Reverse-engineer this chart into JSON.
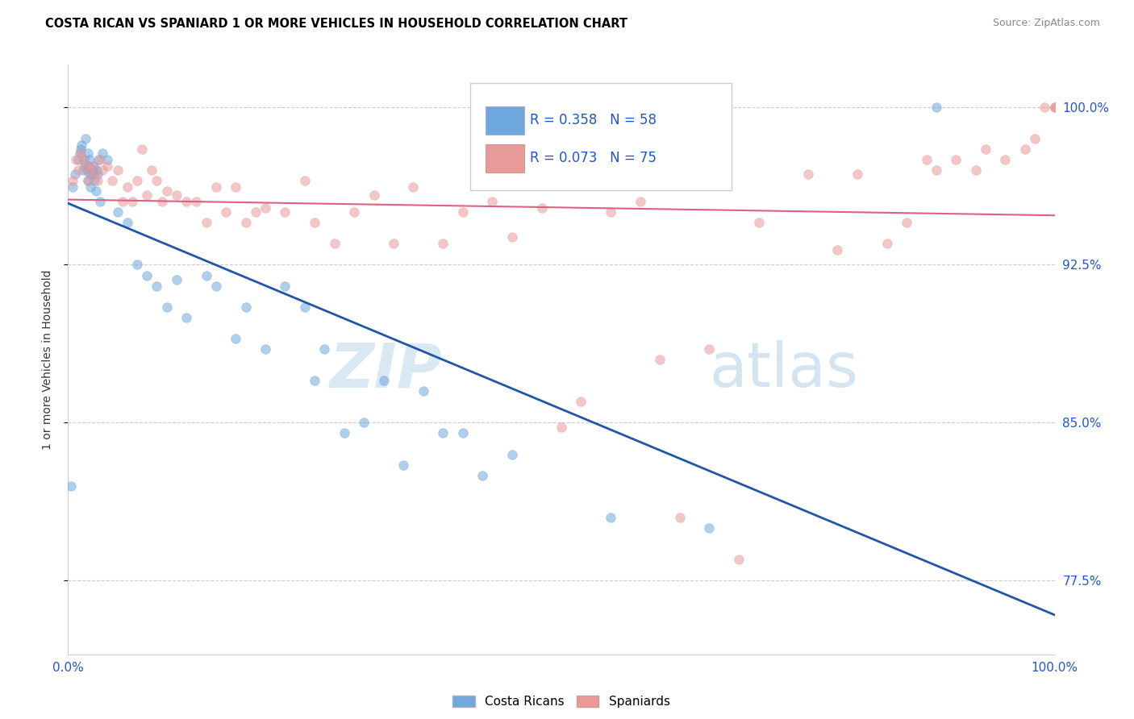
{
  "title": "COSTA RICAN VS SPANIARD 1 OR MORE VEHICLES IN HOUSEHOLD CORRELATION CHART",
  "source": "Source: ZipAtlas.com",
  "ylabel": "1 or more Vehicles in Household",
  "yticks": [
    77.5,
    85.0,
    92.5,
    100.0
  ],
  "ytick_labels": [
    "77.5%",
    "85.0%",
    "92.5%",
    "100.0%"
  ],
  "legend_blue_r": "R = 0.358",
  "legend_blue_n": "N = 58",
  "legend_pink_r": "R = 0.073",
  "legend_pink_n": "N = 75",
  "blue_color": "#6fa8dc",
  "pink_color": "#ea9999",
  "blue_line_color": "#2255aa",
  "pink_line_color": "#e06080",
  "xlim": [
    0,
    100
  ],
  "ylim": [
    74,
    102
  ],
  "blue_x": [
    0.3,
    0.5,
    0.7,
    1.0,
    1.2,
    1.3,
    1.4,
    1.5,
    1.6,
    1.7,
    1.8,
    1.9,
    2.0,
    2.0,
    2.1,
    2.2,
    2.2,
    2.3,
    2.4,
    2.5,
    2.6,
    2.7,
    2.8,
    2.9,
    3.0,
    3.1,
    3.2,
    3.5,
    4.0,
    5.0,
    6.0,
    7.0,
    8.0,
    9.0,
    10.0,
    11.0,
    12.0,
    14.0,
    15.0,
    17.0,
    18.0,
    20.0,
    22.0,
    24.0,
    25.0,
    26.0,
    28.0,
    30.0,
    32.0,
    34.0,
    36.0,
    38.0,
    40.0,
    42.0,
    45.0,
    55.0,
    65.0,
    88.0
  ],
  "blue_y": [
    82.0,
    96.2,
    96.8,
    97.5,
    97.8,
    98.0,
    98.2,
    97.0,
    97.5,
    97.2,
    98.5,
    97.0,
    96.5,
    97.8,
    97.2,
    96.8,
    97.5,
    96.2,
    97.0,
    96.8,
    97.2,
    96.5,
    96.0,
    97.0,
    96.8,
    97.5,
    95.5,
    97.8,
    97.5,
    95.0,
    94.5,
    92.5,
    92.0,
    91.5,
    90.5,
    91.8,
    90.0,
    92.0,
    91.5,
    89.0,
    90.5,
    88.5,
    91.5,
    90.5,
    87.0,
    88.5,
    84.5,
    85.0,
    87.0,
    83.0,
    86.5,
    84.5,
    84.5,
    82.5,
    83.5,
    80.5,
    80.0,
    100.0
  ],
  "pink_x": [
    0.5,
    0.8,
    1.0,
    1.3,
    1.5,
    1.8,
    2.0,
    2.2,
    2.5,
    2.7,
    3.0,
    3.2,
    3.5,
    4.0,
    4.5,
    5.0,
    5.5,
    6.0,
    6.5,
    7.0,
    7.5,
    8.0,
    8.5,
    9.0,
    9.5,
    10.0,
    11.0,
    12.0,
    13.0,
    14.0,
    15.0,
    16.0,
    17.0,
    18.0,
    19.0,
    20.0,
    22.0,
    24.0,
    25.0,
    27.0,
    29.0,
    31.0,
    33.0,
    35.0,
    38.0,
    40.0,
    43.0,
    45.0,
    48.0,
    50.0,
    52.0,
    55.0,
    58.0,
    60.0,
    62.0,
    65.0,
    68.0,
    70.0,
    75.0,
    78.0,
    80.0,
    83.0,
    85.0,
    87.0,
    88.0,
    90.0,
    92.0,
    93.0,
    95.0,
    97.0,
    98.0,
    99.0,
    100.0,
    100.0,
    100.0
  ],
  "pink_y": [
    96.5,
    97.5,
    97.0,
    97.8,
    97.5,
    97.2,
    96.5,
    97.0,
    97.2,
    96.8,
    96.5,
    97.5,
    97.0,
    97.2,
    96.5,
    97.0,
    95.5,
    96.2,
    95.5,
    96.5,
    98.0,
    95.8,
    97.0,
    96.5,
    95.5,
    96.0,
    95.8,
    95.5,
    95.5,
    94.5,
    96.2,
    95.0,
    96.2,
    94.5,
    95.0,
    95.2,
    95.0,
    96.5,
    94.5,
    93.5,
    95.0,
    95.8,
    93.5,
    96.2,
    93.5,
    95.0,
    95.5,
    93.8,
    95.2,
    84.8,
    86.0,
    95.0,
    95.5,
    88.0,
    80.5,
    88.5,
    78.5,
    94.5,
    96.8,
    93.2,
    96.8,
    93.5,
    94.5,
    97.5,
    97.0,
    97.5,
    97.0,
    98.0,
    97.5,
    98.0,
    98.5,
    100.0,
    100.0,
    100.0,
    100.0
  ]
}
